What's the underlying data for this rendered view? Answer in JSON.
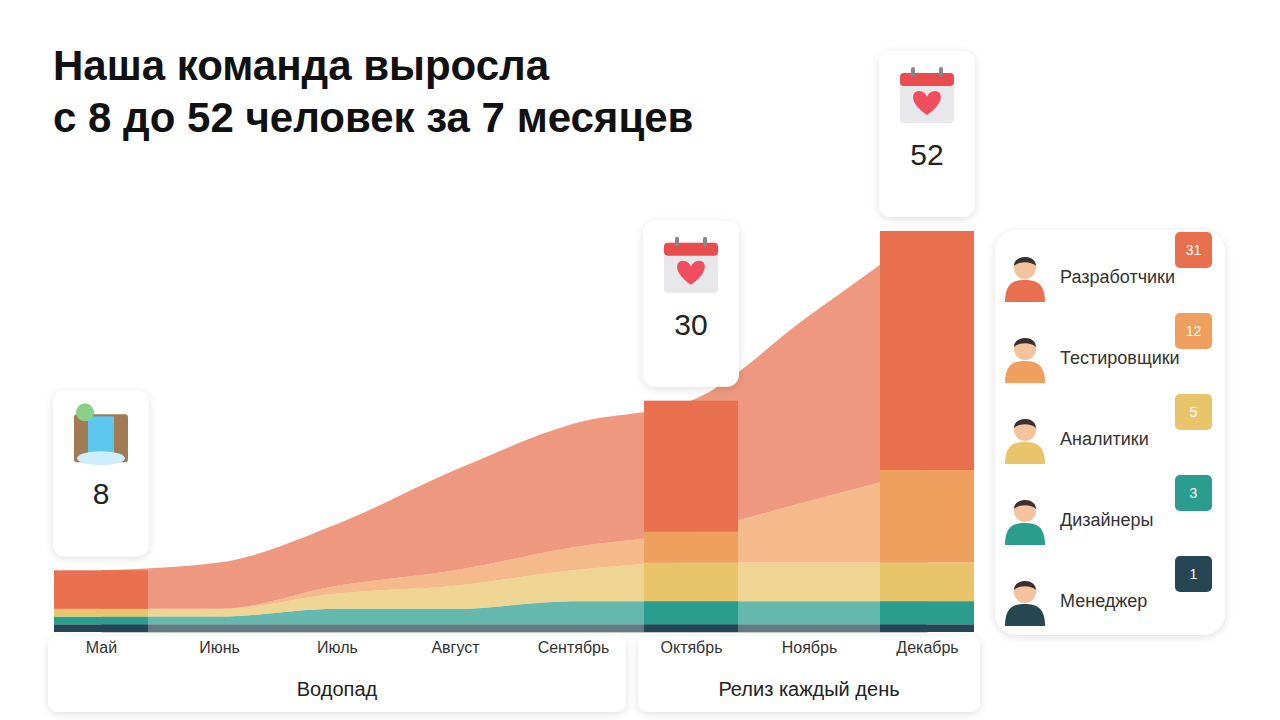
{
  "chart_data": {
    "type": "area",
    "stacked": true,
    "title": "Наша команда выросла с 8 до 52 человек за 7 месяцев",
    "categories": [
      "Май",
      "Июнь",
      "Июль",
      "Август",
      "Сентябрь",
      "Октябрь",
      "Ноябрь",
      "Декабрь"
    ],
    "ylim": [
      0,
      52
    ],
    "tick_labels": "x",
    "legend": "right",
    "series": [
      {
        "name": "Разработчики",
        "color": "#e8704e",
        "values": [
          5,
          6,
          8,
          13,
          16,
          17,
          24,
          31
        ]
      },
      {
        "name": "Тестировщики",
        "color": "#f0a05e",
        "values": [
          0,
          0,
          1,
          2,
          3,
          4,
          8,
          12
        ]
      },
      {
        "name": "Аналитики",
        "color": "#e8c56b",
        "values": [
          1,
          1,
          2,
          3,
          4,
          5,
          5,
          5
        ]
      },
      {
        "name": "Дизайнеры",
        "color": "#2a9d8f",
        "values": [
          1,
          1,
          2,
          2,
          3,
          3,
          3,
          3
        ]
      },
      {
        "name": "Менеджер",
        "color": "#264653",
        "values": [
          1,
          1,
          1,
          1,
          1,
          1,
          1,
          1
        ]
      }
    ],
    "callouts": [
      {
        "category": "Май",
        "value": 8
      },
      {
        "category": "Октябрь",
        "value": 30
      },
      {
        "category": "Декабрь",
        "value": 52
      }
    ],
    "phases": [
      {
        "label": "Водопад",
        "from": "Май",
        "to": "Сентябрь"
      },
      {
        "label": "Релиз каждый день",
        "from": "Октябрь",
        "to": "Декабрь"
      }
    ]
  }
}
